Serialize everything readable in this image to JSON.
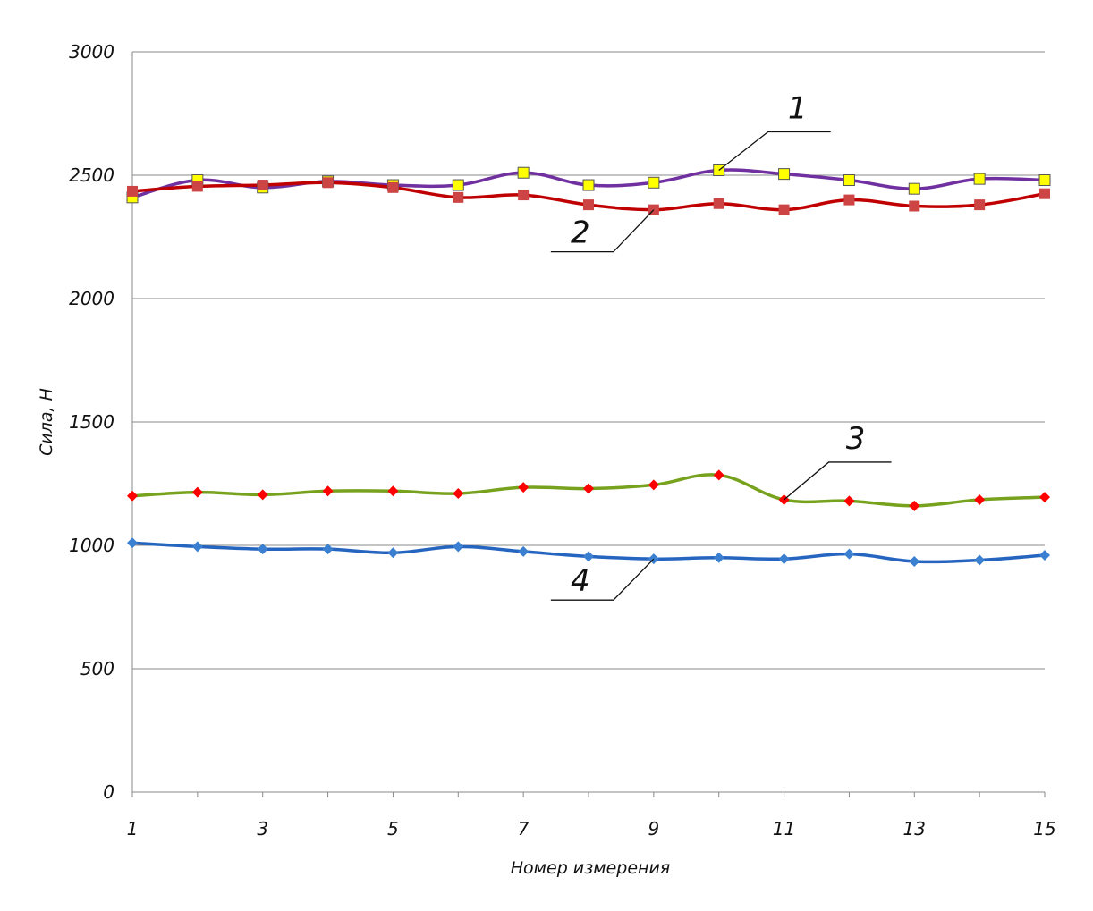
{
  "chart_data": {
    "type": "line",
    "title": "",
    "xlabel": "Номер измерения",
    "ylabel": "Сила, Н",
    "x": [
      1,
      2,
      3,
      4,
      5,
      6,
      7,
      8,
      9,
      10,
      11,
      12,
      13,
      14,
      15
    ],
    "xtick_labels": [
      "1",
      "3",
      "5",
      "7",
      "9",
      "11",
      "13",
      "15"
    ],
    "xtick_values": [
      1,
      3,
      5,
      7,
      9,
      11,
      13,
      15
    ],
    "ytick_labels": [
      "0",
      "500",
      "1000",
      "1500",
      "2000",
      "2500",
      "3000"
    ],
    "ytick_values": [
      0,
      500,
      1000,
      1500,
      2000,
      2500,
      3000
    ],
    "xlim": [
      1,
      15
    ],
    "ylim": [
      0,
      3000
    ],
    "grid": "horizontal",
    "legend": "none",
    "series": [
      {
        "name": "1",
        "line_color": "#7030a0",
        "marker": "square",
        "marker_color": "#ffff00",
        "values": [
          2410,
          2480,
          2450,
          2475,
          2460,
          2460,
          2510,
          2460,
          2470,
          2520,
          2505,
          2480,
          2445,
          2485,
          2480
        ]
      },
      {
        "name": "2",
        "line_color": "#c00000",
        "marker": "square",
        "marker_color": "#cc4444",
        "values": [
          2435,
          2455,
          2460,
          2470,
          2450,
          2410,
          2420,
          2380,
          2360,
          2385,
          2360,
          2400,
          2375,
          2380,
          2425
        ]
      },
      {
        "name": "3",
        "line_color": "#77a21e",
        "marker": "diamond",
        "marker_color": "#ff0000",
        "values": [
          1200,
          1215,
          1205,
          1220,
          1220,
          1210,
          1235,
          1230,
          1245,
          1285,
          1185,
          1180,
          1160,
          1185,
          1195
        ]
      },
      {
        "name": "4",
        "line_color": "#2565c0",
        "marker": "diamond",
        "marker_color": "#3a7fd0",
        "values": [
          1010,
          995,
          985,
          985,
          970,
          995,
          975,
          955,
          945,
          950,
          945,
          965,
          935,
          940,
          960
        ]
      }
    ],
    "annotations": [
      {
        "text": "1",
        "series": "1",
        "point_x": 10
      },
      {
        "text": "2",
        "series": "2",
        "point_x": 9
      },
      {
        "text": "3",
        "series": "3",
        "point_x": 11
      },
      {
        "text": "4",
        "series": "4",
        "point_x": 9
      }
    ]
  }
}
